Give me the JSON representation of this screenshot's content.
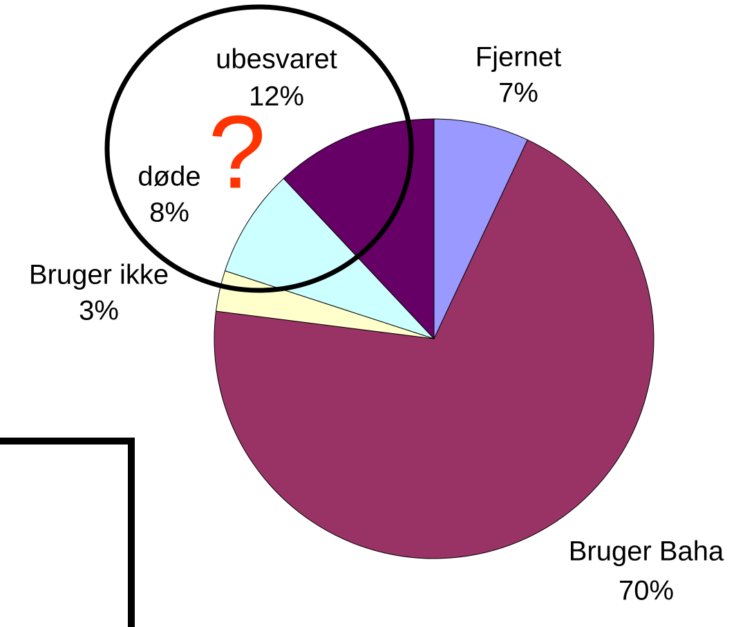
{
  "chart_data": {
    "type": "pie",
    "categories": [
      "Fjernet",
      "Bruger Baha",
      "Bruger ikke",
      "døde",
      "ubesvaret"
    ],
    "values": [
      7,
      70,
      3,
      8,
      12
    ],
    "value_labels": [
      "7%",
      "70%",
      "3%",
      "8%",
      "12%"
    ],
    "colors": [
      "#9999ff",
      "#993366",
      "#ffffcc",
      "#ccffff",
      "#660066"
    ],
    "annotation": "?"
  }
}
